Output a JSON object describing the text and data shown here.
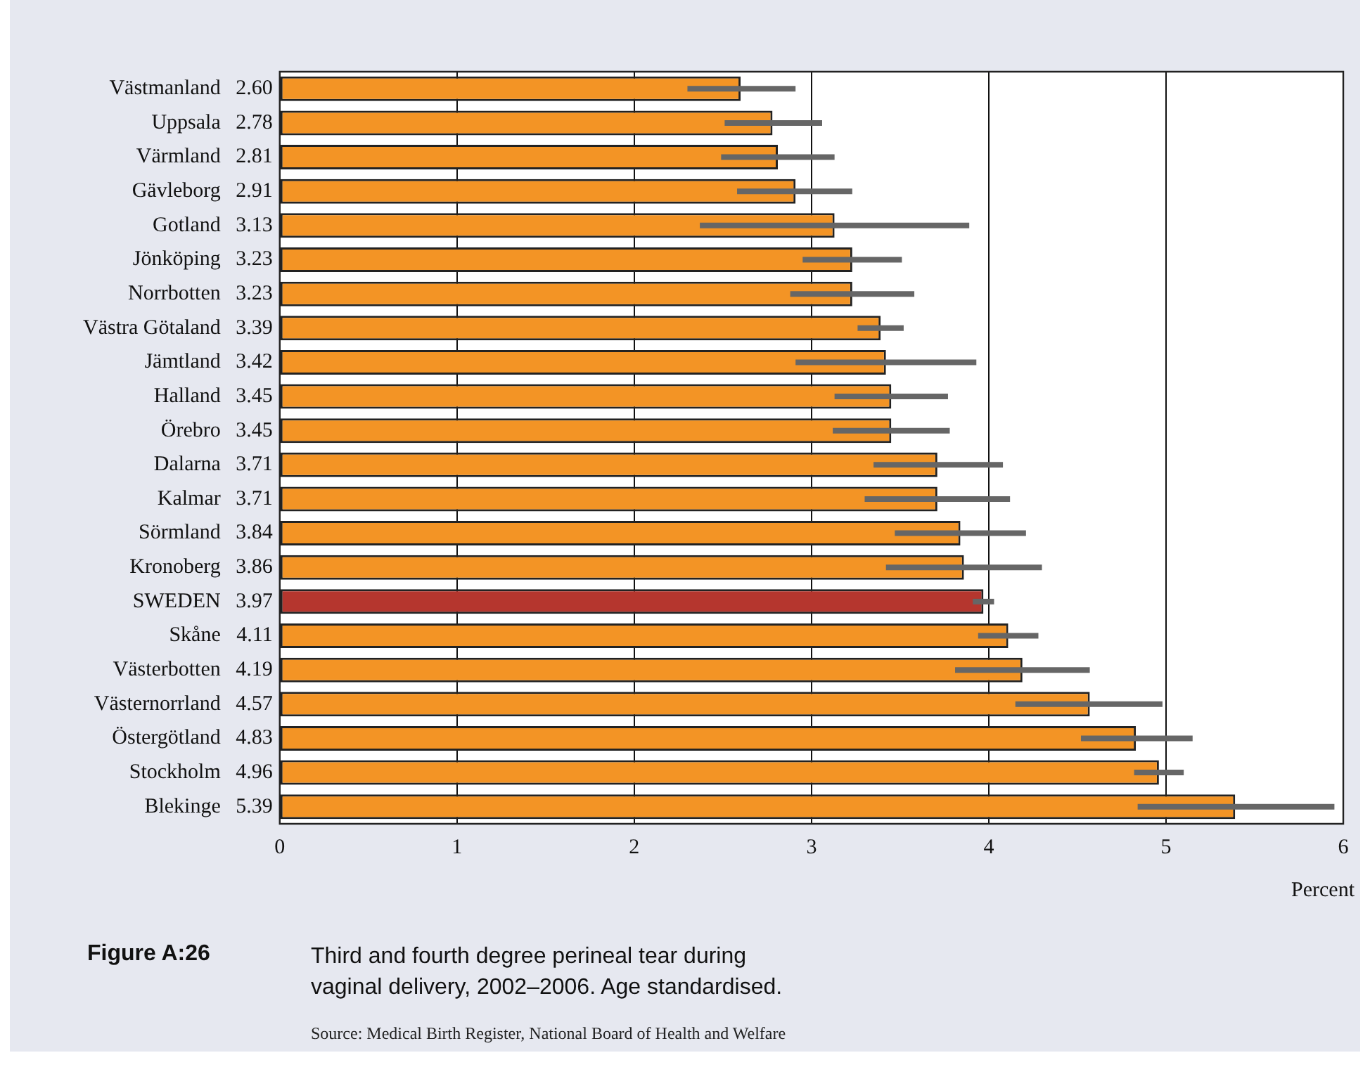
{
  "chart_data": {
    "type": "bar",
    "orientation": "horizontal",
    "title": "Third and fourth degree perineal tear during vaginal delivery, 2002–2006. Age standardised.",
    "xlabel": "Percent",
    "categories": [
      "Västmanland",
      "Uppsala",
      "Värmland",
      "Gävleborg",
      "Gotland",
      "Jönköping",
      "Norrbotten",
      "Västra Götaland",
      "Jämtland",
      "Halland",
      "Örebro",
      "Dalarna",
      "Kalmar",
      "Sörmland",
      "Kronoberg",
      "SWEDEN",
      "Skåne",
      "Västerbotten",
      "Västernorrland",
      "Östergötland",
      "Stockholm",
      "Blekinge"
    ],
    "values": [
      2.6,
      2.78,
      2.81,
      2.91,
      3.13,
      3.23,
      3.23,
      3.39,
      3.42,
      3.45,
      3.45,
      3.71,
      3.71,
      3.84,
      3.86,
      3.97,
      4.11,
      4.19,
      4.57,
      4.83,
      4.96,
      5.39
    ],
    "colors": [
      "#f39425",
      "#f39425",
      "#f39425",
      "#f39425",
      "#f39425",
      "#f39425",
      "#f39425",
      "#f39425",
      "#f39425",
      "#f39425",
      "#f39425",
      "#f39425",
      "#f39425",
      "#f39425",
      "#f39425",
      "#b5362e",
      "#f39425",
      "#f39425",
      "#f39425",
      "#f39425",
      "#f39425",
      "#f39425"
    ],
    "errors": [
      [
        2.3,
        2.91
      ],
      [
        2.51,
        3.06
      ],
      [
        2.49,
        3.13
      ],
      [
        2.58,
        3.23
      ],
      [
        2.37,
        3.89
      ],
      [
        2.95,
        3.51
      ],
      [
        2.88,
        3.58
      ],
      [
        3.26,
        3.52
      ],
      [
        2.91,
        3.93
      ],
      [
        3.13,
        3.77
      ],
      [
        3.12,
        3.78
      ],
      [
        3.35,
        4.08
      ],
      [
        3.3,
        4.12
      ],
      [
        3.47,
        4.21
      ],
      [
        3.42,
        4.3
      ],
      [
        3.91,
        4.03
      ],
      [
        3.94,
        4.28
      ],
      [
        3.81,
        4.57
      ],
      [
        4.15,
        4.98
      ],
      [
        4.52,
        5.15
      ],
      [
        4.82,
        5.1
      ],
      [
        4.84,
        5.95
      ]
    ],
    "value_labels": [
      "2.60",
      "2.78",
      "2.81",
      "2.91",
      "3.13",
      "3.23",
      "3.23",
      "3.39",
      "3.42",
      "3.45",
      "3.45",
      "3.71",
      "3.71",
      "3.84",
      "3.86",
      "3.97",
      "4.11",
      "4.19",
      "4.57",
      "4.83",
      "4.96",
      "5.39"
    ],
    "xlim": [
      0,
      6
    ],
    "xticks": [
      0,
      1,
      2,
      3,
      4,
      5,
      6
    ],
    "grid": "x",
    "legend": false,
    "annotations": [
      "Figure A:26",
      "Source: Medical Birth Register, National Board of Health and Welfare"
    ]
  }
}
